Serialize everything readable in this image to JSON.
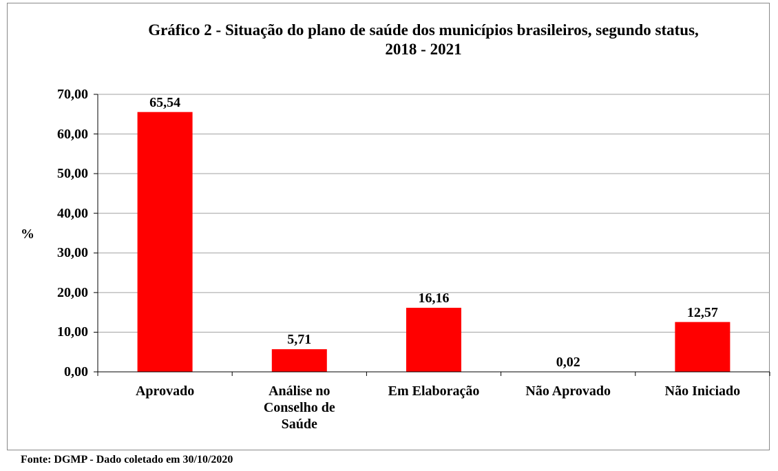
{
  "chart_data": {
    "type": "bar",
    "title": "Gráfico 2 - Situação do plano de saúde dos municípios brasileiros, segundo status, 2018 - 2021",
    "y_label": "%",
    "source": "Fonte: DGMP - Dado coletado em 30/10/2020",
    "categories": [
      "Aprovado",
      "Análise no Conselho de Saúde",
      "Em Elaboração",
      "Não Aprovado",
      "Não Iniciado"
    ],
    "values": [
      65.54,
      5.71,
      16.16,
      0.02,
      12.57
    ],
    "value_labels": [
      "65,54",
      "5,71",
      "16,16",
      "0,02",
      "12,57"
    ],
    "color": "#ff0000",
    "ylim": [
      0,
      70
    ],
    "yticks": [
      {
        "value": 0,
        "label": "0,00"
      },
      {
        "value": 10,
        "label": "10,00"
      },
      {
        "value": 20,
        "label": "20,00"
      },
      {
        "value": 30,
        "label": "30,00"
      },
      {
        "value": 40,
        "label": "40,00"
      },
      {
        "value": 50,
        "label": "50,00"
      },
      {
        "value": 60,
        "label": "60,00"
      },
      {
        "value": 70,
        "label": "70,00"
      }
    ],
    "grid": true
  }
}
